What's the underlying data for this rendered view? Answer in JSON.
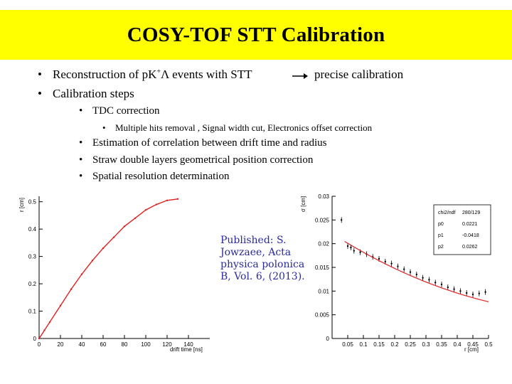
{
  "slide": {
    "title": "COSY-TOF STT Calibration",
    "bullets": [
      {
        "pre": "Reconstruction of pK",
        "sup": "+",
        "post": "Λ events with STT",
        "result": "precise calibration"
      },
      {
        "text": "Calibration steps"
      }
    ],
    "sub_bullets": [
      "TDC correction",
      "Estimation of correlation between drift time and radius",
      "Straw double layers geometrical position correction",
      "Spatial resolution determination"
    ],
    "sub_sub_bullets": [
      "Multiple hits removal , Signal width cut, Electronics offset correction"
    ],
    "bullet_glyph": "•",
    "arrow_icon": "right-arrow-icon",
    "publication_note": "Published: S. Jowzaee, Acta physica polonica B, Vol. 6, (2013).",
    "colors": {
      "title_bg": "#ffff00",
      "curve": "#e02020",
      "note_text": "#2a2aa0"
    }
  },
  "chart_data": [
    {
      "type": "line",
      "xlabel": "drift time [ns]",
      "ylabel": "r [cm]",
      "xlim": [
        0,
        160
      ],
      "ylim": [
        0,
        0.52
      ],
      "x_ticks": [
        "0",
        "20",
        "40",
        "60",
        "80",
        "100",
        "120",
        "140"
      ],
      "y_ticks": [
        "0",
        "0.1",
        "0.2",
        "0.3",
        "0.4",
        "0.5"
      ],
      "series": [
        {
          "x": [
            0,
            5,
            10,
            20,
            30,
            40,
            50,
            60,
            70,
            80,
            90,
            100,
            110,
            120,
            130
          ],
          "values": [
            0.0,
            0.03,
            0.06,
            0.12,
            0.18,
            0.235,
            0.285,
            0.33,
            0.37,
            0.41,
            0.44,
            0.47,
            0.49,
            0.505,
            0.51
          ]
        }
      ]
    },
    {
      "type": "scatter",
      "xlabel": "r [cm]",
      "ylabel": "σ [cm]",
      "xlim": [
        0,
        0.5
      ],
      "ylim": [
        0,
        0.03
      ],
      "x_ticks": [
        "0.05",
        "0.1",
        "0.15",
        "0.2",
        "0.25",
        "0.3",
        "0.35",
        "0.4",
        "0.45",
        "0.5"
      ],
      "y_ticks": [
        "0",
        "0.005",
        "0.01",
        "0.015",
        "0.02",
        "0.025",
        "0.03"
      ],
      "fit_box": [
        {
          "label": "chi2/ndf",
          "value": "280/129"
        },
        {
          "label": "p0",
          "value": "0.0221"
        },
        {
          "label": "p1",
          "value": "-0.0418"
        },
        {
          "label": "p2",
          "value": "0.0262"
        }
      ],
      "fit": {
        "p0": 0.0221,
        "p1": -0.0418,
        "p2": 0.0262
      },
      "series": [
        {
          "x": [
            0.03,
            0.05,
            0.06,
            0.07,
            0.09,
            0.11,
            0.13,
            0.15,
            0.17,
            0.19,
            0.21,
            0.23,
            0.25,
            0.27,
            0.29,
            0.31,
            0.33,
            0.35,
            0.37,
            0.39,
            0.41,
            0.43,
            0.45,
            0.47,
            0.49
          ],
          "values": [
            0.025,
            0.0195,
            0.0192,
            0.0185,
            0.0182,
            0.0178,
            0.0172,
            0.0168,
            0.0162,
            0.0158,
            0.0152,
            0.0146,
            0.014,
            0.0135,
            0.0128,
            0.0124,
            0.0118,
            0.0114,
            0.0108,
            0.0104,
            0.01,
            0.0096,
            0.0093,
            0.0095,
            0.0098
          ]
        }
      ]
    }
  ]
}
